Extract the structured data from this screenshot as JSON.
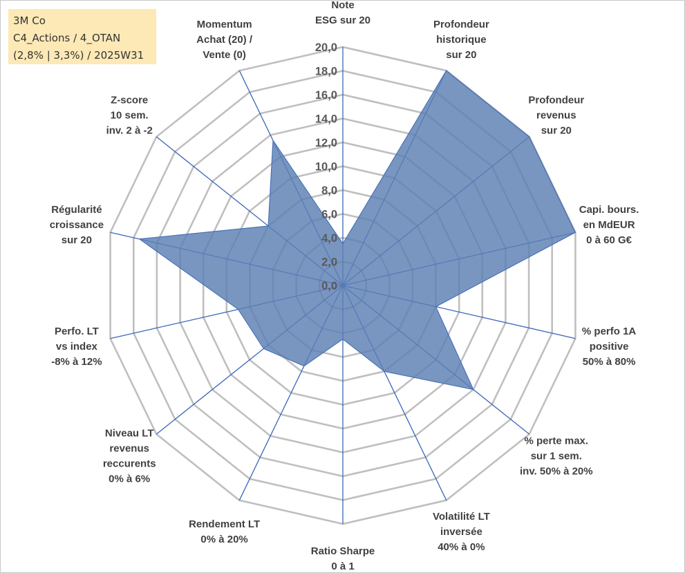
{
  "info": {
    "line1": "3M Co",
    "line2": "C4_Actions / 4_OTAN",
    "line3": "(2,8% | 3,3%) / 2025W31"
  },
  "chart_data": {
    "type": "radar",
    "title": "",
    "rmin": 0,
    "rmax": 20,
    "tick_labels": [
      "0,0",
      "2,0",
      "4,0",
      "6,0",
      "8,0",
      "10,0",
      "12,0",
      "14,0",
      "16,0",
      "18,0",
      "20,0"
    ],
    "fill_color": "#5b7fb3",
    "categories": [
      {
        "label": [
          "Note",
          "ESG sur 20"
        ],
        "value": 3.5
      },
      {
        "label": [
          "Profondeur",
          "historique",
          "sur 20"
        ],
        "value": 20.0
      },
      {
        "label": [
          "Profondeur",
          "revenus",
          "sur 20"
        ],
        "value": 20.0
      },
      {
        "label": [
          "Capi. bours.",
          "en MdEUR",
          "0 à 60 G€"
        ],
        "value": 20.0
      },
      {
        "label": [
          "% perfo 1A",
          "positive",
          "50% à 80%"
        ],
        "value": 8.0
      },
      {
        "label": [
          "% perte max.",
          "sur 1 sem.",
          "inv. 50% à 20%"
        ],
        "value": 14.0
      },
      {
        "label": [
          "Volatilité LT",
          "inversée",
          "40% à 0%"
        ],
        "value": 8.0
      },
      {
        "label": [
          "Ratio Sharpe",
          "0 à 1"
        ],
        "value": 4.5
      },
      {
        "label": [
          "Rendement LT",
          "0% à 20%"
        ],
        "value": 7.5
      },
      {
        "label": [
          "Niveau LT",
          "revenus",
          "reccurents",
          "0% à 6%"
        ],
        "value": 8.5
      },
      {
        "label": [
          "Perfo. LT",
          "vs index",
          "-8% à 12%"
        ],
        "value": 9.0
      },
      {
        "label": [
          "Régularité",
          "croissance",
          "sur 20"
        ],
        "value": 17.5
      },
      {
        "label": [
          "Z-score",
          "10 sem.",
          "inv. 2 à -2"
        ],
        "value": 8.0
      },
      {
        "label": [
          "Momentum",
          "Achat (20) /",
          "Vente (0)"
        ],
        "value": 13.5
      }
    ]
  }
}
